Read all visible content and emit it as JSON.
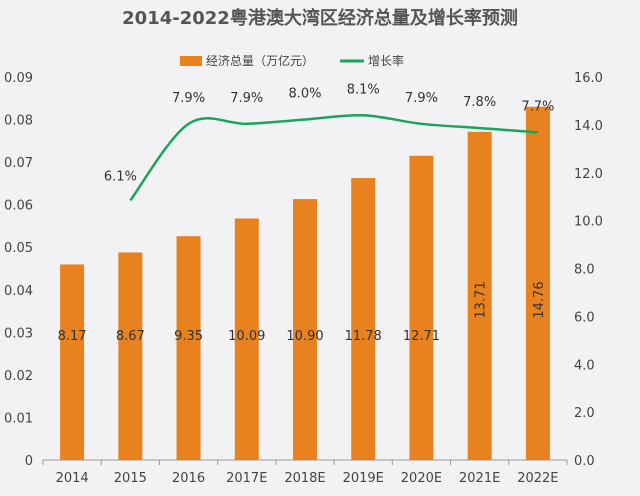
{
  "chart_data": {
    "type": "bar+line",
    "title": "2014-2022粤港澳大湾区经济总量及增长率预测",
    "categories": [
      "2014",
      "2015",
      "2016",
      "2017E",
      "2018E",
      "2019E",
      "2020E",
      "2021E",
      "2022E"
    ],
    "series": [
      {
        "name": "经济总量（万亿元）",
        "type": "bar",
        "axis": "right",
        "color": "#e8821e",
        "values": [
          8.17,
          8.67,
          9.35,
          10.09,
          10.9,
          11.78,
          12.71,
          13.71,
          14.76
        ],
        "labels": [
          "8.17",
          "8.67",
          "9.35",
          "10.09",
          "10.90",
          "11.78",
          "12.71",
          "13.71",
          "14.76"
        ]
      },
      {
        "name": "增长率",
        "type": "line",
        "axis": "left",
        "color": "#1aa35a",
        "values": [
          null,
          0.061,
          0.079,
          0.079,
          0.08,
          0.081,
          0.079,
          0.078,
          0.077
        ],
        "labels": [
          "",
          "6.1%",
          "7.9%",
          "7.9%",
          "8.0%",
          "8.1%",
          "7.9%",
          "7.8%",
          "7.7%"
        ]
      }
    ],
    "left_axis": {
      "range": [
        0,
        0.09
      ],
      "ticks": [
        "0",
        "0.01",
        "0.02",
        "0.03",
        "0.04",
        "0.05",
        "0.06",
        "0.07",
        "0.08",
        "0.09"
      ]
    },
    "right_axis": {
      "range": [
        0,
        16
      ],
      "ticks": [
        "0.0",
        "2.0",
        "4.0",
        "6.0",
        "8.0",
        "10.0",
        "12.0",
        "14.0",
        "16.0"
      ]
    },
    "legend": "top",
    "grid": false
  }
}
